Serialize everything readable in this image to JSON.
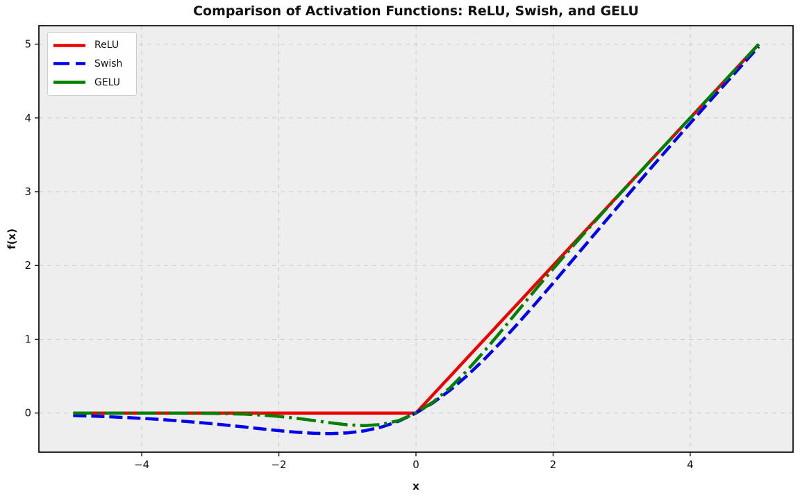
{
  "chart_data": {
    "type": "line",
    "title": "Comparison of Activation Functions: ReLU, Swish, and GELU",
    "xlabel": "x",
    "ylabel": "f(x)",
    "xlim": [
      -5.5,
      5.5
    ],
    "ylim": [
      -0.53,
      5.25
    ],
    "grid": true,
    "legend_position": "upper left",
    "xticks": [
      -4,
      -2,
      0,
      2,
      4
    ],
    "yticks": [
      0,
      1,
      2,
      3,
      4,
      5
    ],
    "xtick_labels": [
      "−4",
      "−2",
      "0",
      "2",
      "4"
    ],
    "ytick_labels": [
      "0",
      "1",
      "2",
      "3",
      "4",
      "5"
    ],
    "x": [
      -5,
      -4.75,
      -4.5,
      -4.25,
      -4,
      -3.75,
      -3.5,
      -3.25,
      -3,
      -2.75,
      -2.5,
      -2.25,
      -2,
      -1.75,
      -1.5,
      -1.25,
      -1,
      -0.75,
      -0.5,
      -0.25,
      0,
      0.25,
      0.5,
      0.75,
      1,
      1.25,
      1.5,
      1.75,
      2,
      2.25,
      2.5,
      2.75,
      3,
      3.25,
      3.5,
      3.75,
      4,
      4.25,
      4.5,
      4.75,
      5
    ],
    "series": [
      {
        "name": "ReLU",
        "color": "#ee0000",
        "style": "solid",
        "linewidth": 4.5,
        "values": [
          0,
          0,
          0,
          0,
          0,
          0,
          0,
          0,
          0,
          0,
          0,
          0,
          0,
          0,
          0,
          0,
          0,
          0,
          0,
          0,
          0,
          0.25,
          0.5,
          0.75,
          1,
          1.25,
          1.5,
          1.75,
          2,
          2.25,
          2.5,
          2.75,
          3,
          3.25,
          3.5,
          3.75,
          4,
          4.25,
          4.5,
          4.75,
          5
        ]
      },
      {
        "name": "Swish",
        "color": "#0000ee",
        "style": "dashed",
        "linewidth": 4.5,
        "values": [
          -0.0335,
          -0.0408,
          -0.0494,
          -0.0598,
          -0.0719,
          -0.0861,
          -0.1026,
          -0.1213,
          -0.1423,
          -0.1652,
          -0.1896,
          -0.2145,
          -0.2384,
          -0.2591,
          -0.2736,
          -0.2784,
          -0.2689,
          -0.2406,
          -0.1888,
          -0.1095,
          0,
          0.1405,
          0.3112,
          0.5094,
          0.7311,
          0.9716,
          1.2264,
          1.4909,
          1.7616,
          2.0355,
          2.3104,
          2.5848,
          2.8577,
          3.1287,
          3.3974,
          3.6639,
          3.928,
          4.1901,
          4.4505,
          4.7092,
          4.9665
        ]
      },
      {
        "name": "GELU",
        "color": "#008000",
        "style": "dashdot",
        "linewidth": 4.5,
        "values": [
          0,
          0,
          0,
          0,
          -0.0001,
          -0.0003,
          -0.0008,
          -0.0019,
          -0.004,
          -0.0082,
          -0.0155,
          -0.0275,
          -0.0455,
          -0.0701,
          -0.1002,
          -0.1321,
          -0.1587,
          -0.17,
          -0.1543,
          -0.1003,
          0,
          0.1497,
          0.3457,
          0.58,
          0.8413,
          1.1179,
          1.3998,
          1.6799,
          1.9545,
          2.2225,
          2.4845,
          2.7418,
          2.996,
          3.2481,
          3.4992,
          3.7497,
          3.9999,
          4.25,
          4.5,
          4.75,
          5
        ]
      }
    ]
  },
  "style": {
    "figure_bg": "#ffffff",
    "plot_bg": "#eeeeee",
    "grid_color": "#c9c9c9",
    "spine_color": "#111111",
    "tick_color": "#111111",
    "tick_label_color": "#111111",
    "tick_label_size": 15
  }
}
